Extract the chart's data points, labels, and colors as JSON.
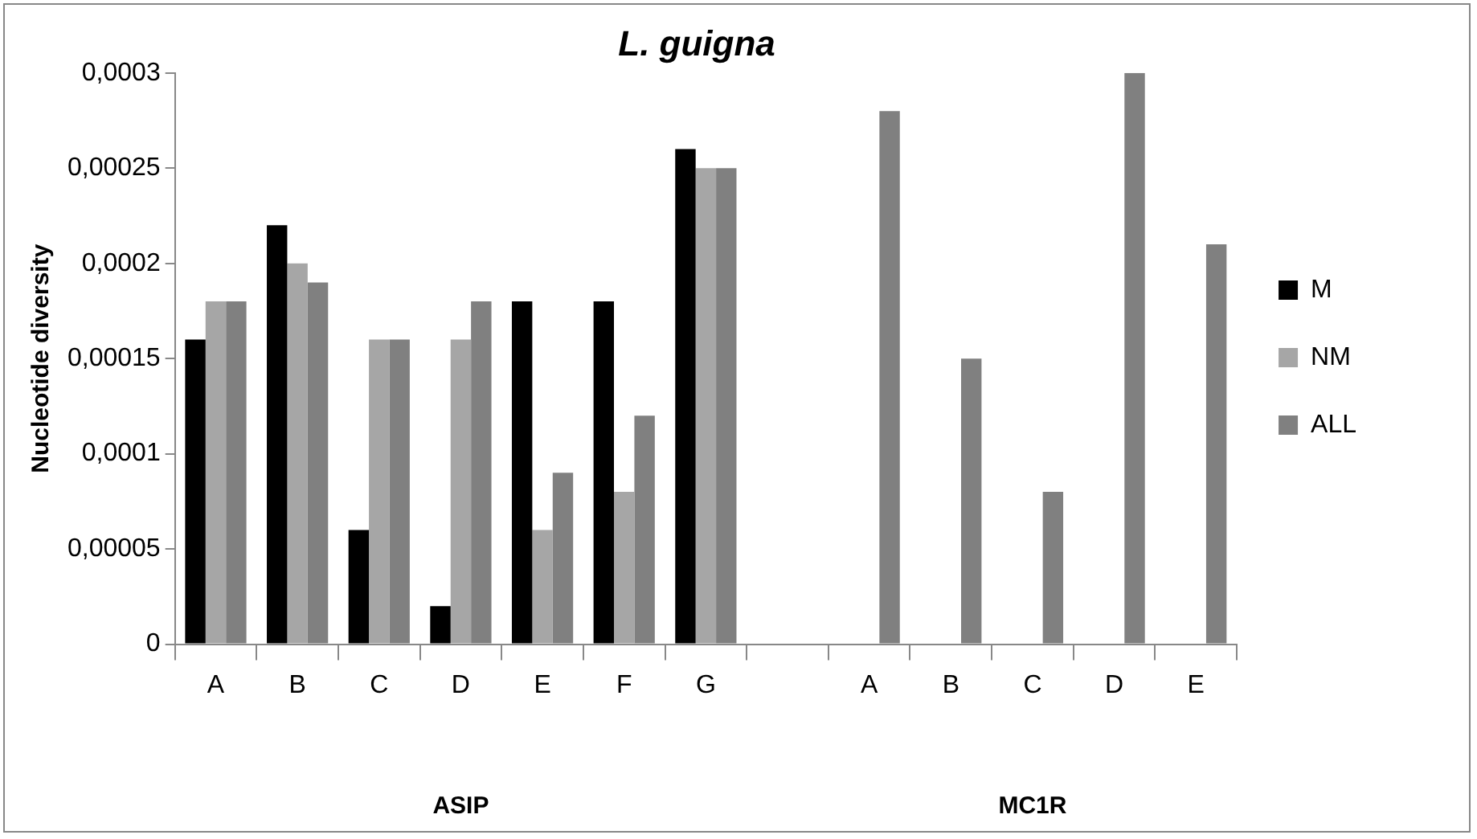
{
  "chart_data": {
    "type": "bar",
    "title": "L. guigna",
    "ylabel": "Nucleotide diversity",
    "categories": [
      "A",
      "B",
      "C",
      "D",
      "E",
      "F",
      "G",
      null,
      "A",
      "B",
      "C",
      "D",
      "E"
    ],
    "series": [
      {
        "name": "M",
        "color": "#000000",
        "values": [
          0.00016,
          0.00022,
          6e-05,
          2e-05,
          0.00018,
          0.00018,
          0.00026,
          null,
          null,
          null,
          null,
          null,
          null
        ]
      },
      {
        "name": "NM",
        "color": "#a6a6a6",
        "values": [
          0.00018,
          0.0002,
          0.00016,
          0.00016,
          6e-05,
          8e-05,
          0.00025,
          null,
          null,
          null,
          null,
          null,
          null
        ]
      },
      {
        "name": "ALL",
        "color": "#808080",
        "values": [
          0.00018,
          0.00019,
          0.00016,
          0.00018,
          9e-05,
          0.00012,
          0.00025,
          null,
          0.00028,
          0.00015,
          8e-05,
          0.0003,
          0.00021
        ]
      }
    ],
    "ylim": [
      0,
      0.0003
    ],
    "yticks": [
      0,
      {
        "value": 5e-05,
        "label": "0,00005"
      },
      {
        "value": 0.0001,
        "label": "0,0001"
      },
      {
        "value": 0.00015,
        "label": "0,00015"
      },
      {
        "value": 0.0002,
        "label": "0,0002"
      },
      {
        "value": 0.00025,
        "label": "0,00025"
      },
      {
        "value": 0.0003,
        "label": "0,0003"
      }
    ],
    "annotations": [
      "ASIP",
      "MC1R"
    ],
    "grid": false,
    "legend": "right"
  }
}
